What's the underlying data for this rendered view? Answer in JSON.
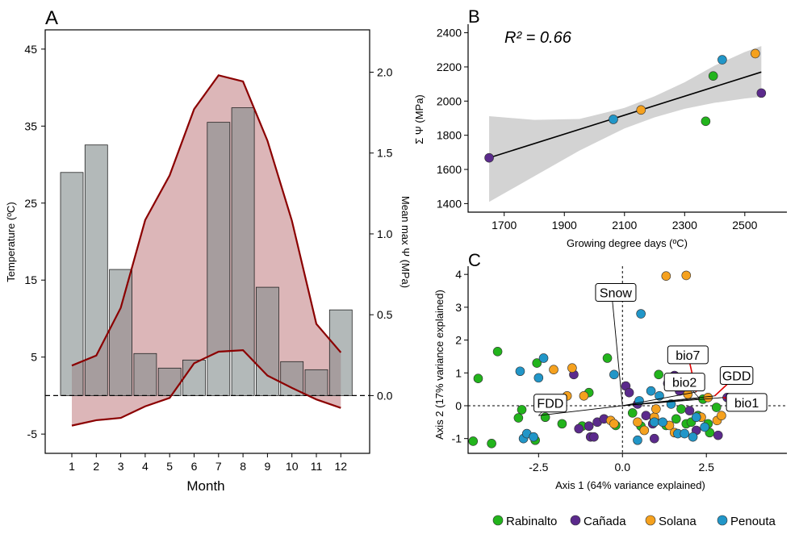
{
  "colors": {
    "bar_fill": "#858e8e",
    "area_fill": "#dcb6b8",
    "temp_line": "#8b0000",
    "fit_ribbon": "#d3d3d3",
    "Rabinalto": "#22b41c",
    "Cañada": "#5b2a8c",
    "Solana": "#f5a11e",
    "Penouta": "#2196c8",
    "arrow_red": "#e00000"
  },
  "panels": {
    "a_label": "A",
    "b_label": "B",
    "c_label": "C"
  },
  "legend": {
    "items": [
      {
        "name": "Rabinalto",
        "color_key": "Rabinalto"
      },
      {
        "name": "Cañada",
        "color_key": "Cañada"
      },
      {
        "name": "Solana",
        "color_key": "Solana"
      },
      {
        "name": "Penouta",
        "color_key": "Penouta"
      }
    ]
  },
  "chart_data": [
    {
      "panel": "A",
      "type": "bar",
      "xlabel": "Month",
      "ylabel": "Temperature (ºC)",
      "y2label": "Mean max Ψ (MPa)",
      "categories": [
        "1",
        "2",
        "3",
        "4",
        "5",
        "6",
        "7",
        "8",
        "9",
        "10",
        "11",
        "12"
      ],
      "ylim": [
        -7.5,
        47.5
      ],
      "yticks": [
        -5,
        5,
        15,
        25,
        35,
        45
      ],
      "y2ticks": [
        0.0,
        0.5,
        1.0,
        1.5,
        2.0
      ],
      "y2_ref_line": 0.0,
      "bars": {
        "axis": "right",
        "values": [
          1.38,
          1.55,
          0.78,
          0.26,
          0.17,
          0.22,
          1.69,
          1.78,
          0.67,
          0.21,
          0.16,
          0.53
        ]
      },
      "temp_max": [
        3.9,
        5.2,
        11.4,
        22.8,
        28.6,
        37.2,
        41.6,
        40.8,
        33.1,
        22.7,
        9.3,
        5.6
      ],
      "temp_min": [
        -3.9,
        -3.2,
        -2.9,
        -1.4,
        -0.3,
        4.2,
        5.7,
        5.9,
        2.6,
        1.0,
        -0.5,
        -1.6
      ]
    },
    {
      "panel": "B",
      "type": "scatter",
      "title": "R² = 0.66",
      "xlabel": "Growing degree days (ºC)",
      "ylabel": "Σ Ψ (MPa)",
      "xlim": [
        1580,
        2640
      ],
      "ylim": [
        1350,
        2450
      ],
      "xticks": [
        1700,
        1900,
        2100,
        2300,
        2500
      ],
      "yticks": [
        1400,
        1600,
        1800,
        2000,
        2200,
        2400
      ],
      "points": [
        {
          "x": 1650,
          "y": 1668,
          "site": "Cañada"
        },
        {
          "x": 2063,
          "y": 1893,
          "site": "Penouta"
        },
        {
          "x": 2155,
          "y": 1948,
          "site": "Solana"
        },
        {
          "x": 2370,
          "y": 1882,
          "site": "Rabinalto"
        },
        {
          "x": 2395,
          "y": 2147,
          "site": "Rabinalto"
        },
        {
          "x": 2425,
          "y": 2242,
          "site": "Penouta"
        },
        {
          "x": 2535,
          "y": 2278,
          "site": "Solana"
        },
        {
          "x": 2555,
          "y": 2047,
          "site": "Cañada"
        }
      ],
      "fit": {
        "x": [
          1650,
          2555
        ],
        "y": [
          1668,
          2170
        ]
      },
      "ribbon": {
        "x": [
          1650,
          1800,
          1950,
          2100,
          2200,
          2300,
          2400,
          2500,
          2555
        ],
        "lo": [
          1410,
          1560,
          1710,
          1840,
          1905,
          1955,
          1990,
          2015,
          2025
        ],
        "hi": [
          1912,
          1890,
          1895,
          1960,
          2028,
          2110,
          2208,
          2287,
          2322
        ]
      }
    },
    {
      "panel": "C",
      "type": "scatter",
      "xlabel": "Axis 1 (64% variance explained)",
      "ylabel": "Axis 2 (17% variance explained)",
      "xlim": [
        -4.6,
        4.9
      ],
      "ylim": [
        -1.45,
        4.25
      ],
      "xticks": [
        -2.5,
        0.0,
        2.5
      ],
      "xtick_labels": [
        "-2.5",
        "0.0",
        "2.5"
      ],
      "yticks": [
        -1,
        0,
        1,
        2,
        3,
        4
      ],
      "vectors": [
        {
          "name": "Snow",
          "x": -0.3,
          "y": 3.2,
          "lx": -0.2,
          "ly": 3.45
        },
        {
          "name": "FDD",
          "x": -2.5,
          "y": -0.3,
          "lx": -2.15,
          "ly": 0.08
        },
        {
          "name": "bio7",
          "x": 2.2,
          "y": 0.42,
          "lx": 1.95,
          "ly": 1.55
        },
        {
          "name": "bio2",
          "x": 2.3,
          "y": 0.22,
          "lx": 1.85,
          "ly": 0.72
        },
        {
          "name": "GDD",
          "x": 2.75,
          "y": 0.3,
          "lx": 3.4,
          "ly": 0.92
        },
        {
          "name": "bio1",
          "x": 3.0,
          "y": 0.25,
          "lx": 3.7,
          "ly": 0.1
        }
      ],
      "points": [
        {
          "x": -4.45,
          "y": -1.08,
          "site": "Rabinalto"
        },
        {
          "x": -3.9,
          "y": -1.15,
          "site": "Rabinalto"
        },
        {
          "x": -4.3,
          "y": 0.83,
          "site": "Rabinalto"
        },
        {
          "x": -3.72,
          "y": 1.65,
          "site": "Rabinalto"
        },
        {
          "x": -3.1,
          "y": -0.37,
          "site": "Rabinalto"
        },
        {
          "x": -3.0,
          "y": -0.12,
          "site": "Rabinalto"
        },
        {
          "x": -2.55,
          "y": 1.3,
          "site": "Rabinalto"
        },
        {
          "x": -2.6,
          "y": -1.05,
          "site": "Rabinalto"
        },
        {
          "x": -2.3,
          "y": -0.35,
          "site": "Rabinalto"
        },
        {
          "x": -1.8,
          "y": -0.55,
          "site": "Rabinalto"
        },
        {
          "x": -1.2,
          "y": -0.62,
          "site": "Rabinalto"
        },
        {
          "x": -1.0,
          "y": 0.4,
          "site": "Rabinalto"
        },
        {
          "x": -0.45,
          "y": 1.45,
          "site": "Rabinalto"
        },
        {
          "x": -0.2,
          "y": -0.6,
          "site": "Rabinalto"
        },
        {
          "x": 0.3,
          "y": -0.22,
          "site": "Rabinalto"
        },
        {
          "x": 0.55,
          "y": -0.62,
          "site": "Rabinalto"
        },
        {
          "x": 0.95,
          "y": -0.4,
          "site": "Rabinalto"
        },
        {
          "x": 1.08,
          "y": 0.95,
          "site": "Rabinalto"
        },
        {
          "x": 1.3,
          "y": -0.6,
          "site": "Rabinalto"
        },
        {
          "x": 1.6,
          "y": -0.4,
          "site": "Rabinalto"
        },
        {
          "x": 1.75,
          "y": -0.1,
          "site": "Rabinalto"
        },
        {
          "x": 1.9,
          "y": -0.55,
          "site": "Rabinalto"
        },
        {
          "x": 2.05,
          "y": -0.5,
          "site": "Rabinalto"
        },
        {
          "x": 2.25,
          "y": -0.3,
          "site": "Rabinalto"
        },
        {
          "x": 2.4,
          "y": 0.2,
          "site": "Rabinalto"
        },
        {
          "x": 2.55,
          "y": -0.55,
          "site": "Rabinalto"
        },
        {
          "x": 2.8,
          "y": -0.05,
          "site": "Rabinalto"
        },
        {
          "x": 2.6,
          "y": -0.82,
          "site": "Rabinalto"
        },
        {
          "x": -1.45,
          "y": 0.95,
          "site": "Cañada"
        },
        {
          "x": -1.3,
          "y": -0.7,
          "site": "Cañada"
        },
        {
          "x": -1.0,
          "y": -0.62,
          "site": "Cañada"
        },
        {
          "x": -0.75,
          "y": -0.5,
          "site": "Cañada"
        },
        {
          "x": -0.55,
          "y": -0.4,
          "site": "Cañada"
        },
        {
          "x": -0.95,
          "y": -0.95,
          "site": "Cañada"
        },
        {
          "x": -0.85,
          "y": -0.95,
          "site": "Cañada"
        },
        {
          "x": 0.1,
          "y": 0.6,
          "site": "Cañada"
        },
        {
          "x": 0.2,
          "y": 0.4,
          "site": "Cañada"
        },
        {
          "x": 0.45,
          "y": 0.05,
          "site": "Cañada"
        },
        {
          "x": 0.7,
          "y": -0.3,
          "site": "Cañada"
        },
        {
          "x": 0.9,
          "y": -0.55,
          "site": "Cañada"
        },
        {
          "x": 0.95,
          "y": -1.0,
          "site": "Cañada"
        },
        {
          "x": 1.35,
          "y": 0.68,
          "site": "Cañada"
        },
        {
          "x": 1.55,
          "y": 0.92,
          "site": "Cañada"
        },
        {
          "x": 1.7,
          "y": 0.45,
          "site": "Cañada"
        },
        {
          "x": 2.0,
          "y": -0.15,
          "site": "Cañada"
        },
        {
          "x": 2.2,
          "y": -0.75,
          "site": "Cañada"
        },
        {
          "x": 2.85,
          "y": -0.9,
          "site": "Cañada"
        },
        {
          "x": 3.12,
          "y": 0.25,
          "site": "Cañada"
        },
        {
          "x": -2.05,
          "y": 1.1,
          "site": "Solana"
        },
        {
          "x": -1.65,
          "y": 0.3,
          "site": "Solana"
        },
        {
          "x": -1.5,
          "y": 1.15,
          "site": "Solana"
        },
        {
          "x": -1.15,
          "y": 0.3,
          "site": "Solana"
        },
        {
          "x": -0.35,
          "y": -0.45,
          "site": "Solana"
        },
        {
          "x": -0.25,
          "y": -0.55,
          "site": "Solana"
        },
        {
          "x": 0.45,
          "y": -0.5,
          "site": "Solana"
        },
        {
          "x": 0.65,
          "y": -0.75,
          "site": "Solana"
        },
        {
          "x": 0.95,
          "y": -0.35,
          "site": "Solana"
        },
        {
          "x": 1.0,
          "y": -0.1,
          "site": "Solana"
        },
        {
          "x": 1.3,
          "y": 3.95,
          "site": "Solana"
        },
        {
          "x": 1.9,
          "y": 3.97,
          "site": "Solana"
        },
        {
          "x": 1.4,
          "y": -0.6,
          "site": "Solana"
        },
        {
          "x": 1.55,
          "y": -0.82,
          "site": "Solana"
        },
        {
          "x": 1.95,
          "y": 0.35,
          "site": "Solana"
        },
        {
          "x": 2.35,
          "y": -0.35,
          "site": "Solana"
        },
        {
          "x": 2.55,
          "y": 0.25,
          "site": "Solana"
        },
        {
          "x": 2.82,
          "y": -0.45,
          "site": "Solana"
        },
        {
          "x": 2.95,
          "y": -0.3,
          "site": "Solana"
        },
        {
          "x": -3.05,
          "y": 1.05,
          "site": "Penouta"
        },
        {
          "x": -2.95,
          "y": -1.0,
          "site": "Penouta"
        },
        {
          "x": -2.85,
          "y": -0.85,
          "site": "Penouta"
        },
        {
          "x": -2.65,
          "y": -0.95,
          "site": "Penouta"
        },
        {
          "x": -2.5,
          "y": 0.85,
          "site": "Penouta"
        },
        {
          "x": -2.35,
          "y": 1.45,
          "site": "Penouta"
        },
        {
          "x": -0.25,
          "y": 0.95,
          "site": "Penouta"
        },
        {
          "x": 0.5,
          "y": 0.15,
          "site": "Penouta"
        },
        {
          "x": 0.55,
          "y": 2.8,
          "site": "Penouta"
        },
        {
          "x": 0.85,
          "y": 0.45,
          "site": "Penouta"
        },
        {
          "x": 0.95,
          "y": -0.5,
          "site": "Penouta"
        },
        {
          "x": 1.1,
          "y": 0.3,
          "site": "Penouta"
        },
        {
          "x": 1.2,
          "y": -0.5,
          "site": "Penouta"
        },
        {
          "x": 1.45,
          "y": 0.05,
          "site": "Penouta"
        },
        {
          "x": 1.65,
          "y": -0.85,
          "site": "Penouta"
        },
        {
          "x": 1.85,
          "y": -0.85,
          "site": "Penouta"
        },
        {
          "x": 2.1,
          "y": -0.95,
          "site": "Penouta"
        },
        {
          "x": 2.2,
          "y": -0.35,
          "site": "Penouta"
        },
        {
          "x": 2.45,
          "y": -0.65,
          "site": "Penouta"
        },
        {
          "x": 0.45,
          "y": -1.05,
          "site": "Penouta"
        }
      ]
    }
  ]
}
